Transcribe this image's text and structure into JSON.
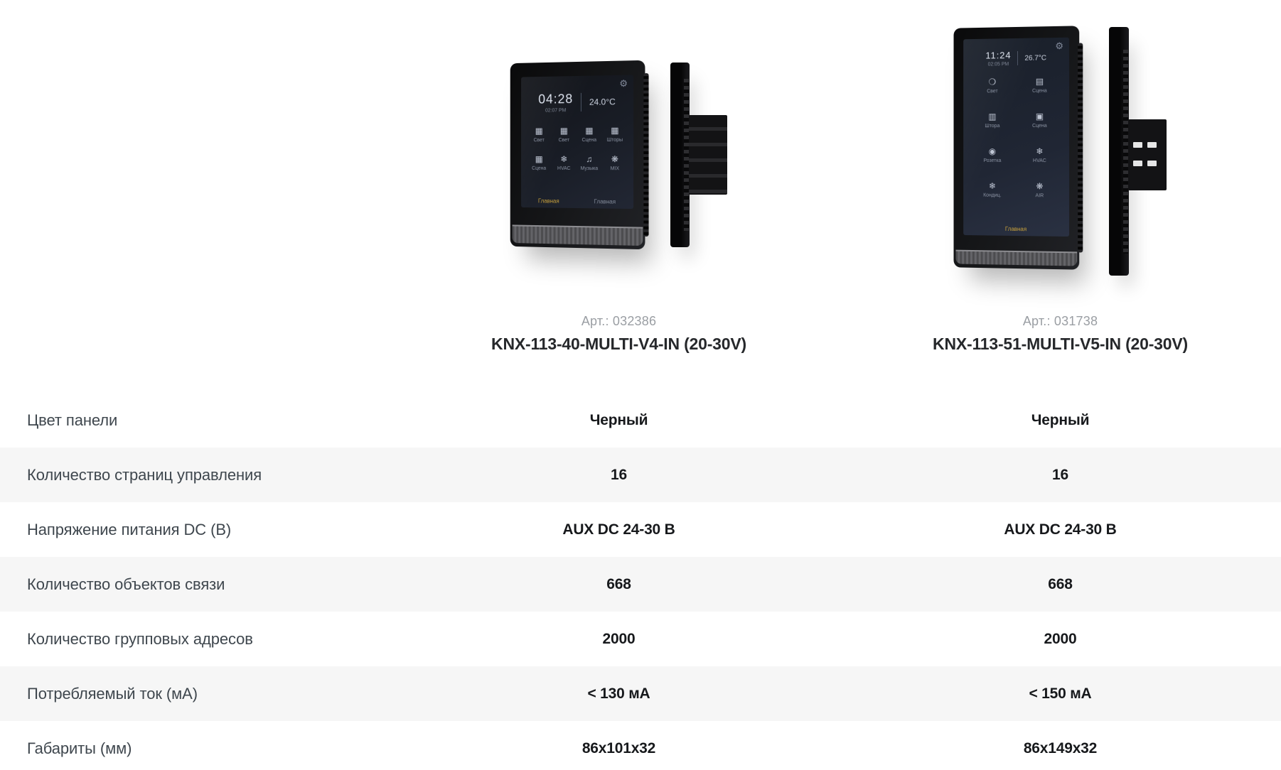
{
  "page": {
    "background": "#ffffff",
    "stripe_color": "#f6f6f6",
    "accent_yellow": "#c9a23c",
    "label_color": "#3f474e",
    "value_color": "#17191c",
    "article_color": "#9a9ea3"
  },
  "products": [
    {
      "article_prefix": "Арт.:",
      "article": "032386",
      "title": "KNX-113-40-MULTI-V4-IN (20-30V)",
      "panel_color": "Черный",
      "screen": {
        "time": "04:28",
        "time_sub": "02:07 PM",
        "temperature": "24.0°C",
        "tiles": [
          {
            "icon": "grid",
            "label": "Свет"
          },
          {
            "icon": "grid",
            "label": "Свет"
          },
          {
            "icon": "grid",
            "label": "Сцена"
          },
          {
            "icon": "grid",
            "label": "Шторы"
          },
          {
            "icon": "grid",
            "label": "Сцена"
          },
          {
            "icon": "snow",
            "label": "HVAC"
          },
          {
            "icon": "music",
            "label": "Музыка"
          },
          {
            "icon": "fan",
            "label": "MIX"
          }
        ],
        "nav": [
          "Главная",
          "Главная"
        ]
      }
    },
    {
      "article_prefix": "Арт.:",
      "article": "031738",
      "title": "KNX-113-51-MULTI-V5-IN (20-30V)",
      "panel_color": "Черный",
      "screen": {
        "time": "11:24",
        "time_sub": "02:05 PM",
        "temperature": "26.7°C",
        "tiles": [
          {
            "icon": "bulb",
            "label": "Свет"
          },
          {
            "icon": "curtain",
            "label": "Сцена"
          },
          {
            "icon": "blind",
            "label": "Штора"
          },
          {
            "icon": "scene",
            "label": "Сцена"
          },
          {
            "icon": "socket",
            "label": "Розетка"
          },
          {
            "icon": "snow",
            "label": "HVAC"
          },
          {
            "icon": "snow",
            "label": "Кондиц."
          },
          {
            "icon": "fan",
            "label": "AIR"
          }
        ],
        "nav": [
          "Главная"
        ]
      }
    }
  ],
  "spec_table": {
    "rows": [
      {
        "label": "Цвет панели",
        "values": [
          "Черный",
          "Черный"
        ]
      },
      {
        "label": "Количество страниц управления",
        "values": [
          "16",
          "16"
        ]
      },
      {
        "label": "Напряжение питания DC (В)",
        "values": [
          "AUX DC 24-30 В",
          "AUX DC 24-30 В"
        ]
      },
      {
        "label": "Количество объектов связи",
        "values": [
          "668",
          "668"
        ]
      },
      {
        "label": "Количество групповых адресов",
        "values": [
          "2000",
          "2000"
        ]
      },
      {
        "label": "Потребляемый ток (мА)",
        "values": [
          "< 130 мА",
          "< 150 мА"
        ]
      },
      {
        "label": "Габариты (мм)",
        "values": [
          "86x101x32",
          "86x149x32"
        ]
      }
    ]
  }
}
